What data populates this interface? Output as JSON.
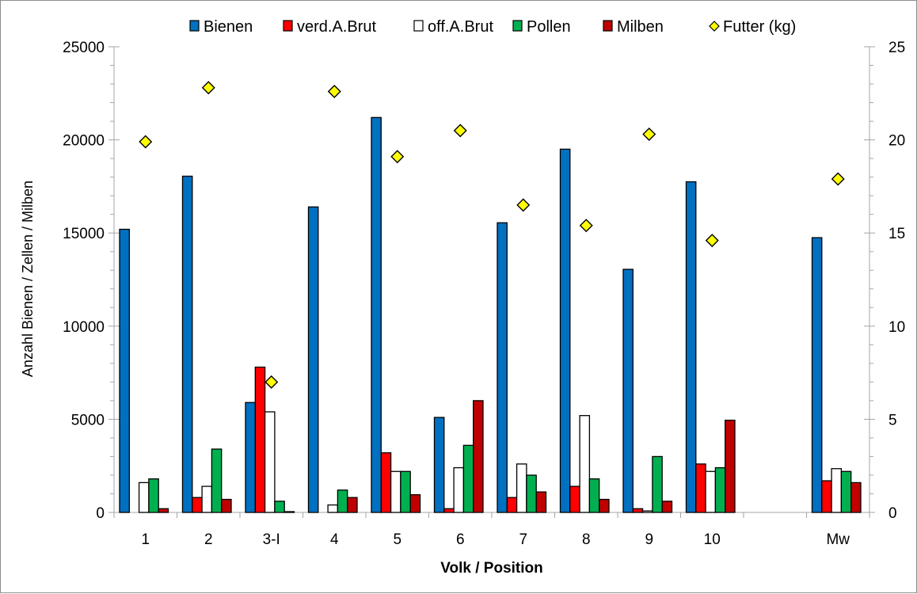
{
  "chart_data": {
    "type": "bar",
    "title": "",
    "xlabel": "Volk / Position",
    "ylabel": "Anzahl Bienen / Zellen / Milben",
    "y2label": "",
    "ylim": [
      0,
      25000
    ],
    "y2lim": [
      0,
      25
    ],
    "yticks": [
      0,
      5000,
      10000,
      15000,
      20000,
      25000
    ],
    "y2ticks": [
      0,
      5,
      10,
      15,
      20,
      25
    ],
    "grid": false,
    "legend_position": "top",
    "categories": [
      "1",
      "2",
      "3-I",
      "4",
      "5",
      "6",
      "7",
      "8",
      "9",
      "10",
      "",
      "Mw"
    ],
    "series": [
      {
        "name": "Bienen",
        "type": "bar",
        "axis": "left",
        "color": "#0070C0",
        "values": [
          15200,
          18050,
          5900,
          16400,
          21200,
          5100,
          15550,
          19500,
          13050,
          17750,
          null,
          14750
        ]
      },
      {
        "name": "verd.A.Brut",
        "type": "bar",
        "axis": "left",
        "color": "#FF0000",
        "values": [
          0,
          800,
          7800,
          0,
          3200,
          200,
          800,
          1400,
          200,
          2600,
          null,
          1700
        ]
      },
      {
        "name": "off.A.Brut",
        "type": "bar",
        "axis": "left",
        "color": "#FFFFFF",
        "values": [
          1600,
          1400,
          5400,
          400,
          2200,
          2400,
          2600,
          5200,
          80,
          2200,
          null,
          2350
        ]
      },
      {
        "name": "Pollen",
        "type": "bar",
        "axis": "left",
        "color": "#00B050",
        "values": [
          1800,
          3400,
          600,
          1200,
          2200,
          3600,
          2000,
          1800,
          3000,
          2400,
          null,
          2200
        ]
      },
      {
        "name": "Milben",
        "type": "bar",
        "axis": "left",
        "color": "#C00000",
        "values": [
          200,
          700,
          30,
          800,
          950,
          6000,
          1100,
          700,
          600,
          4950,
          null,
          1600
        ]
      },
      {
        "name": "Futter (kg)",
        "type": "scatter",
        "marker": "diamond",
        "axis": "right",
        "color": "#FFFF00",
        "values": [
          19.9,
          22.8,
          7.0,
          22.6,
          19.1,
          20.5,
          16.5,
          15.4,
          20.3,
          14.6,
          null,
          17.9
        ]
      }
    ]
  }
}
